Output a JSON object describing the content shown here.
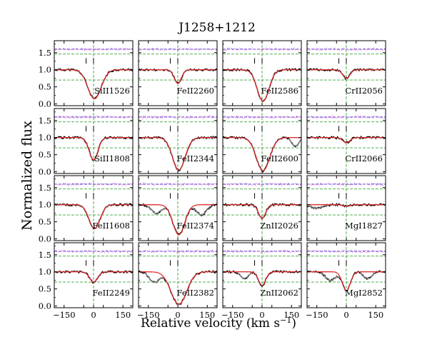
{
  "chart_data": {
    "type": "line",
    "title": "J1258+1212",
    "ylabel": "Normalized flux",
    "xlabel": "Relative velocity (km s",
    "xlabel_exp": "−1",
    "xlabel_close": ")",
    "xlim": [
      -200,
      200
    ],
    "ylim": [
      -0.05,
      1.85
    ],
    "xticks": [
      -150,
      -50,
      50,
      150
    ],
    "xticklabels": [
      "−150",
      "0",
      "150"
    ],
    "xtick_label_values": [
      -150,
      0,
      150
    ],
    "yticks": [
      0.0,
      0.5,
      1.0,
      1.5
    ],
    "yticklabels": [
      "0.0",
      "0.5",
      "1.0",
      "1.5"
    ],
    "component_velocities": [
      -38,
      0
    ],
    "reference_lines": {
      "continuum": 1.0,
      "half_depth": 0.7,
      "upper_green": 1.46,
      "upper_blue": 1.6
    },
    "colors": {
      "data": "#000000",
      "model": "#e03030",
      "residual": "#d040d0",
      "guide_green": "#3aa33a",
      "guide_blue": "#3333cc",
      "contaminant": "#808080"
    },
    "panels": [
      {
        "label": "SiII1526",
        "min": 0.15,
        "width": 34,
        "center": 5,
        "extra": []
      },
      {
        "label": "FeII2260",
        "min": 0.6,
        "width": 18,
        "center": 0,
        "extra": []
      },
      {
        "label": "FeII2586",
        "min": 0.08,
        "width": 30,
        "center": 5,
        "extra": []
      },
      {
        "label": "CrII2056",
        "min": 0.75,
        "width": 18,
        "center": 0,
        "extra": []
      },
      {
        "label": "SiII1808",
        "min": 0.35,
        "width": 22,
        "center": 0,
        "extra": []
      },
      {
        "label": "FeII2344",
        "min": 0.05,
        "width": 32,
        "center": 5,
        "extra": []
      },
      {
        "label": "FeII2600",
        "min": 0.03,
        "width": 34,
        "center": 5,
        "extra": [
          {
            "v": 170,
            "d": 0.25,
            "w": 18
          }
        ]
      },
      {
        "label": "CrII2066",
        "min": 0.85,
        "width": 18,
        "center": 0,
        "extra": []
      },
      {
        "label": "FeII1608",
        "min": 0.3,
        "width": 28,
        "center": 5,
        "extra": []
      },
      {
        "label": "FeII2374",
        "min": 0.12,
        "width": 30,
        "center": 5,
        "extra": [
          {
            "v": -110,
            "d": 0.25,
            "w": 25
          },
          {
            "v": 120,
            "d": 0.3,
            "w": 25
          }
        ]
      },
      {
        "label": "ZnII2026",
        "min": 0.6,
        "width": 18,
        "center": 0,
        "extra": []
      },
      {
        "label": "MgI1827",
        "min": 0.95,
        "width": 15,
        "center": 0,
        "extra": [
          {
            "v": -150,
            "d": 0.1,
            "w": 30
          }
        ]
      },
      {
        "label": "FeII2249",
        "min": 0.7,
        "width": 20,
        "center": 0,
        "extra": []
      },
      {
        "label": "FeII2382",
        "min": 0.05,
        "width": 40,
        "center": 5,
        "extra": [
          {
            "v": -120,
            "d": 0.3,
            "w": 25
          }
        ]
      },
      {
        "label": "ZnII2062",
        "min": 0.6,
        "width": 18,
        "center": 0,
        "extra": [
          {
            "v": -90,
            "d": 0.2,
            "w": 20
          }
        ]
      },
      {
        "label": "MgI2852",
        "min": 0.45,
        "width": 20,
        "center": 0,
        "extra": [
          {
            "v": -80,
            "d": 0.25,
            "w": 25
          },
          {
            "v": 110,
            "d": 0.2,
            "w": 20
          }
        ]
      }
    ]
  }
}
